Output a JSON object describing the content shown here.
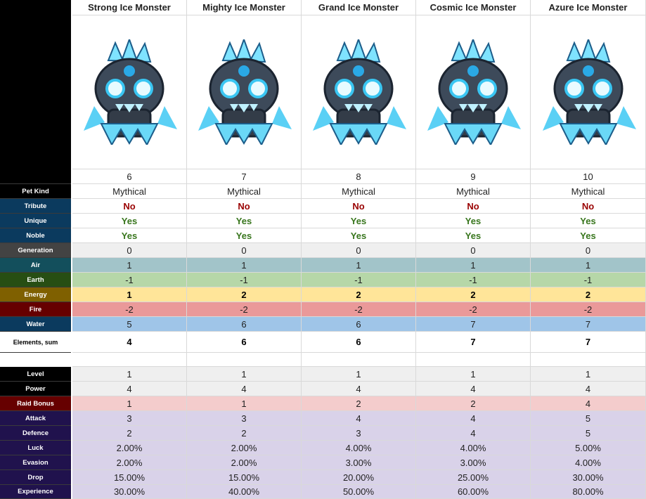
{
  "columns": [
    "Strong Ice Monster",
    "Mighty Ice Monster",
    "Grand Ice Monster",
    "Cosmic Ice Monster",
    "Azure Ice Monster"
  ],
  "rows": [
    {
      "values": [
        6,
        7,
        8,
        9,
        10
      ]
    },
    {
      "label": "Pet Kind",
      "values": [
        "Mythical",
        "Mythical",
        "Mythical",
        "Mythical",
        "Mythical"
      ]
    },
    {
      "label": "Tribute",
      "values": [
        "No",
        "No",
        "No",
        "No",
        "No"
      ]
    },
    {
      "label": "Unique",
      "values": [
        "Yes",
        "Yes",
        "Yes",
        "Yes",
        "Yes"
      ]
    },
    {
      "label": "Noble",
      "values": [
        "Yes",
        "Yes",
        "Yes",
        "Yes",
        "Yes"
      ]
    },
    {
      "label": "Generation",
      "values": [
        0,
        0,
        0,
        0,
        0
      ]
    },
    {
      "label": "Air",
      "values": [
        1,
        1,
        1,
        1,
        1
      ]
    },
    {
      "label": "Earth",
      "values": [
        -1,
        -1,
        -1,
        -1,
        -1
      ]
    },
    {
      "label": "Energy",
      "values": [
        1,
        2,
        2,
        2,
        2
      ]
    },
    {
      "label": "Fire",
      "values": [
        -2,
        -2,
        -2,
        -2,
        -2
      ]
    },
    {
      "label": "Water",
      "values": [
        5,
        6,
        6,
        7,
        7
      ]
    },
    {
      "label": "Elements, sum",
      "values": [
        4,
        6,
        6,
        7,
        7
      ]
    },
    {
      "label": "Level",
      "values": [
        1,
        1,
        1,
        1,
        1
      ]
    },
    {
      "label": "Power",
      "values": [
        4,
        4,
        4,
        4,
        4
      ]
    },
    {
      "label": "Raid Bonus",
      "values": [
        1,
        1,
        2,
        2,
        4
      ]
    },
    {
      "label": "Attack",
      "values": [
        3,
        3,
        4,
        4,
        5
      ]
    },
    {
      "label": "Defence",
      "values": [
        2,
        2,
        3,
        4,
        5
      ]
    },
    {
      "label": "Luck",
      "values": [
        "2.00%",
        "2.00%",
        "4.00%",
        "4.00%",
        "5.00%"
      ]
    },
    {
      "label": "Evasion",
      "values": [
        "2.00%",
        "2.00%",
        "3.00%",
        "3.00%",
        "4.00%"
      ]
    },
    {
      "label": "Drop",
      "values": [
        "15.00%",
        "15.00%",
        "20.00%",
        "25.00%",
        "30.00%"
      ]
    },
    {
      "label": "Experience",
      "values": [
        "30.00%",
        "40.00%",
        "50.00%",
        "60.00%",
        "80.00%"
      ]
    }
  ]
}
